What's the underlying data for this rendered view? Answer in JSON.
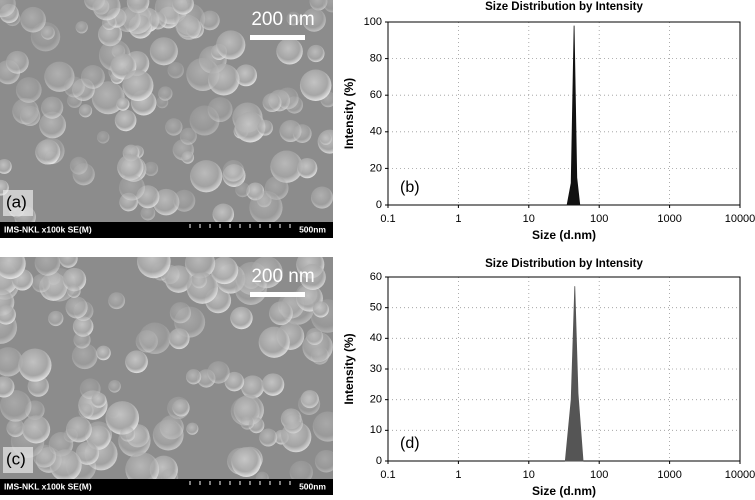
{
  "images": [
    {
      "label": "(a)",
      "scale_bar": "200 nm",
      "info": "IMS-NKL x100k SE(M)",
      "info_scale": "500nm"
    },
    {
      "label": "(c)",
      "scale_bar": "200 nm",
      "info": "IMS-NKL x100k SE(M)",
      "info_scale": "500nm"
    }
  ],
  "chart_data": [
    {
      "type": "area",
      "title": "Size Distribution by Intensity",
      "x_label": "Size (d.nm)",
      "y_label": "Intensity (%)",
      "annotation": "(b)",
      "x": [
        35,
        40,
        44,
        48,
        53
      ],
      "values": [
        0,
        12,
        98,
        15,
        0
      ],
      "color": "#111111",
      "xlim": [
        0.1,
        10000
      ],
      "xticks": [
        0.1,
        1,
        10,
        100,
        1000,
        10000
      ],
      "log_x": true,
      "ylim": [
        0,
        100
      ],
      "yticks": [
        0,
        20,
        40,
        60,
        80,
        100
      ],
      "grid": true
    },
    {
      "type": "area",
      "title": "Size Distribution by Intensity",
      "x_label": "Size (d.nm)",
      "y_label": "Intensity (%)",
      "annotation": "(d)",
      "x": [
        33,
        40,
        45,
        50,
        59
      ],
      "values": [
        0,
        20,
        57,
        22,
        0
      ],
      "color": "#555555",
      "xlim": [
        0.1,
        10000
      ],
      "xticks": [
        0.1,
        1,
        10,
        100,
        1000,
        10000
      ],
      "log_x": true,
      "ylim": [
        0,
        60
      ],
      "yticks": [
        0,
        10,
        20,
        30,
        40,
        50,
        60
      ],
      "grid": true
    }
  ]
}
